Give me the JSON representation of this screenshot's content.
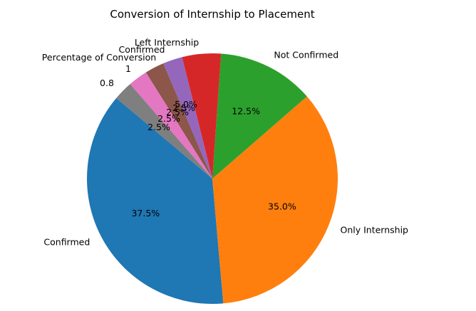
{
  "chart_data": {
    "type": "pie",
    "title": "Conversion of Internship to Placement",
    "slices": [
      {
        "label": "Confirmed",
        "value": 37.5,
        "pct_label": "37.5%",
        "color": "#1f77b4"
      },
      {
        "label": "Only Internship",
        "value": 35.0,
        "pct_label": "35.0%",
        "color": "#ff7f0e"
      },
      {
        "label": "Not Confirmed",
        "value": 12.5,
        "pct_label": "12.5%",
        "color": "#2ca02c"
      },
      {
        "label": "",
        "value": 5.0,
        "pct_label": "5.0%",
        "color": "#d62728"
      },
      {
        "label": "Left Internship",
        "value": 2.5,
        "pct_label": "2.5%",
        "color": "#9467bd"
      },
      {
        "label": "Confirmed",
        "value": 2.5,
        "pct_label": "2.5%",
        "color": "#8c564b"
      },
      {
        "label": "1",
        "value": 2.5,
        "pct_label": "2.5%",
        "color": "#e377c2"
      },
      {
        "label": "0.8",
        "value": 2.5,
        "pct_label": "2.5%",
        "color": "#7f7f7f"
      }
    ],
    "extra_labels": [
      "Percentage of Conversion"
    ]
  }
}
